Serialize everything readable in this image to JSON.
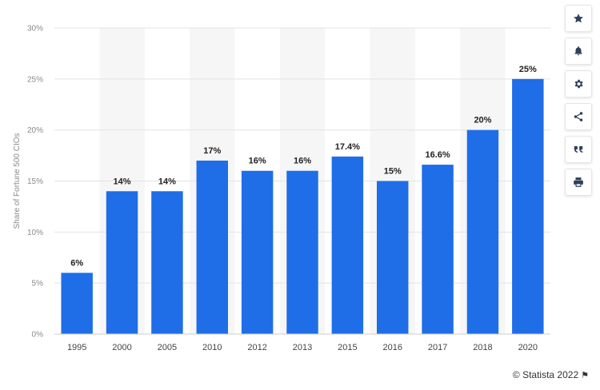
{
  "chart_data": {
    "type": "bar",
    "categories": [
      "1995",
      "2000",
      "2005",
      "2010",
      "2012",
      "2013",
      "2015",
      "2016",
      "2017",
      "2018",
      "2020"
    ],
    "values": [
      6,
      14,
      14,
      17,
      16,
      16,
      17.4,
      15,
      16.6,
      20,
      25
    ],
    "value_labels": [
      "6%",
      "14%",
      "14%",
      "17%",
      "16%",
      "16%",
      "17.4%",
      "15%",
      "16.6%",
      "20%",
      "25%"
    ],
    "ylabel": "Share of Fortune 500 CIOs",
    "xlabel": "",
    "ylim": [
      0,
      30
    ],
    "yticks": [
      0,
      5,
      10,
      15,
      20,
      25,
      30
    ],
    "ytick_labels": [
      "0%",
      "5%",
      "10%",
      "15%",
      "20%",
      "25%",
      "30%"
    ],
    "bar_color": "#1f6ee8",
    "band_color": "#f6f6f6",
    "grid": true
  },
  "toolbar": [
    {
      "icon": "star-icon",
      "name": "favorite-button"
    },
    {
      "icon": "bell-icon",
      "name": "notification-button"
    },
    {
      "icon": "gear-icon",
      "name": "settings-button"
    },
    {
      "icon": "share-icon",
      "name": "share-button"
    },
    {
      "icon": "quote-icon",
      "name": "cite-button"
    },
    {
      "icon": "print-icon",
      "name": "print-button"
    }
  ],
  "credit": {
    "text": "© Statista 2022",
    "flag_glyph": "⚑"
  }
}
